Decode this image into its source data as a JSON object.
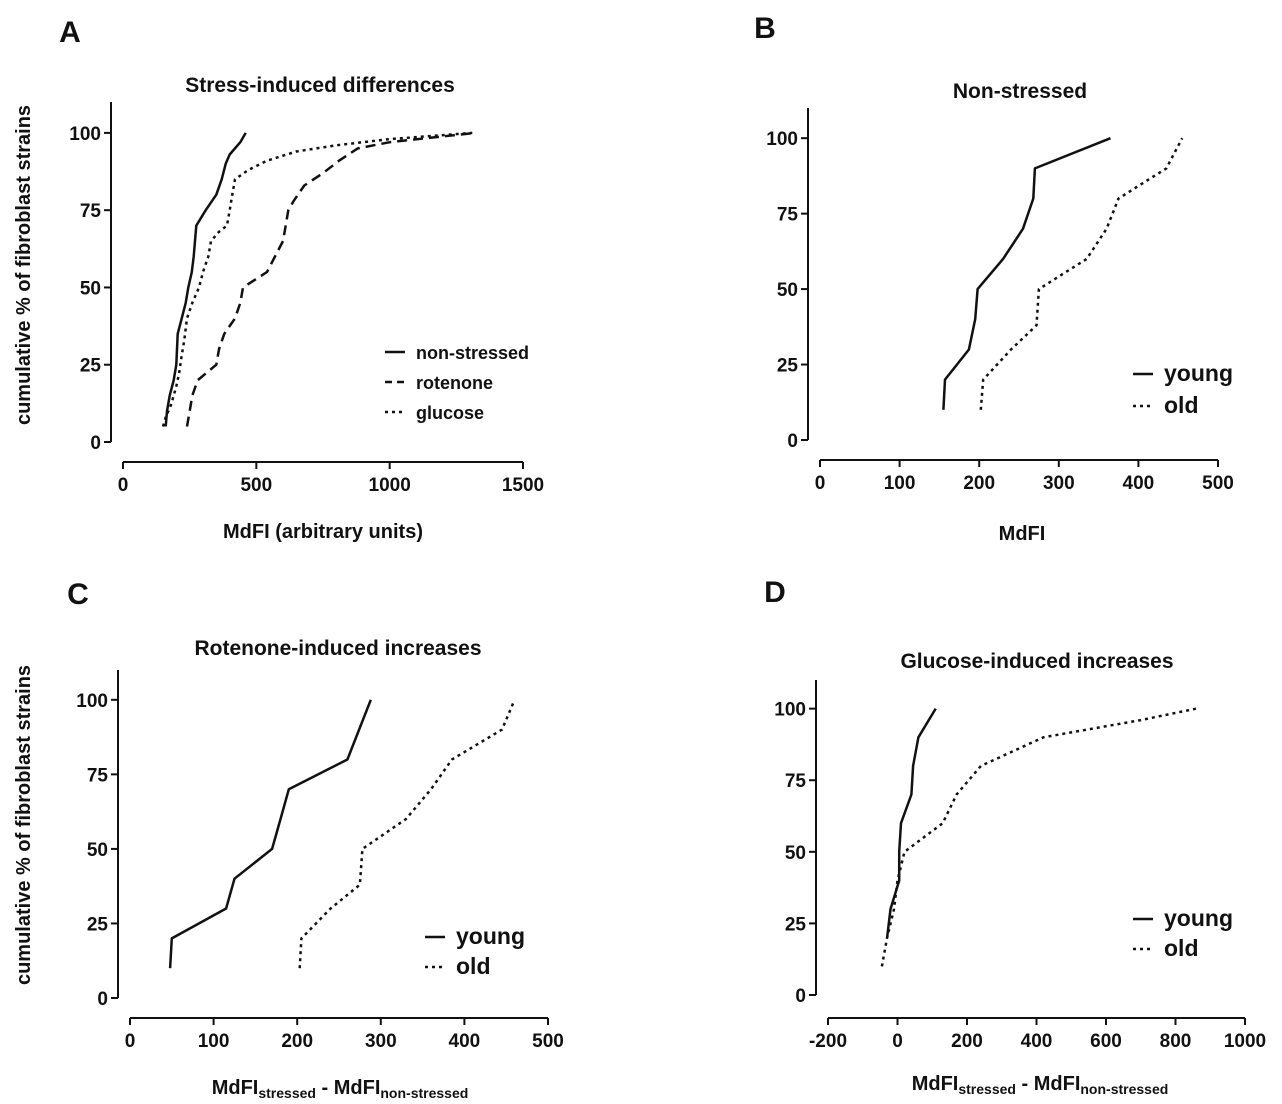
{
  "shared": {
    "ylabel": "cumulative % of fibroblast strains"
  },
  "chart_data": [
    {
      "panel": "A",
      "type": "line",
      "title": "Stress-induced differences",
      "xlabel": "MdFI (arbitrary units)",
      "ylabel": "cumulative % of fibroblast strains",
      "xlim": [
        0,
        1500
      ],
      "ylim": [
        0,
        110
      ],
      "xticks": [
        0,
        500,
        1000,
        1500
      ],
      "yticks": [
        0,
        25,
        50,
        75,
        100
      ],
      "legend_position": "bottom-right",
      "series": [
        {
          "name": "non-stressed",
          "style": "solid",
          "points": [
            [
              160,
              5
            ],
            [
              165,
              10
            ],
            [
              175,
              15
            ],
            [
              190,
              20
            ],
            [
              200,
              25
            ],
            [
              205,
              35
            ],
            [
              220,
              40
            ],
            [
              235,
              45
            ],
            [
              245,
              50
            ],
            [
              258,
              55
            ],
            [
              265,
              60
            ],
            [
              270,
              65
            ],
            [
              275,
              70
            ],
            [
              310,
              75
            ],
            [
              350,
              80
            ],
            [
              370,
              85
            ],
            [
              385,
              90
            ],
            [
              400,
              93
            ],
            [
              440,
              97
            ],
            [
              460,
              100
            ]
          ]
        },
        {
          "name": "rotenone",
          "style": "dashed",
          "points": [
            [
              240,
              5
            ],
            [
              250,
              10
            ],
            [
              260,
              15
            ],
            [
              280,
              20
            ],
            [
              350,
              25
            ],
            [
              360,
              30
            ],
            [
              380,
              35
            ],
            [
              420,
              40
            ],
            [
              440,
              45
            ],
            [
              450,
              50
            ],
            [
              540,
              55
            ],
            [
              570,
              60
            ],
            [
              600,
              65
            ],
            [
              610,
              70
            ],
            [
              620,
              75
            ],
            [
              640,
              78
            ],
            [
              680,
              83
            ],
            [
              750,
              87
            ],
            [
              810,
              91
            ],
            [
              880,
              95
            ],
            [
              1000,
              97
            ],
            [
              1320,
              100
            ]
          ]
        },
        {
          "name": "glucose",
          "style": "dotted",
          "points": [
            [
              150,
              5
            ],
            [
              160,
              8
            ],
            [
              180,
              12
            ],
            [
              200,
              18
            ],
            [
              210,
              22
            ],
            [
              220,
              28
            ],
            [
              230,
              33
            ],
            [
              240,
              40
            ],
            [
              260,
              45
            ],
            [
              285,
              50
            ],
            [
              300,
              55
            ],
            [
              320,
              60
            ],
            [
              330,
              65
            ],
            [
              360,
              68
            ],
            [
              390,
              70
            ],
            [
              400,
              75
            ],
            [
              410,
              80
            ],
            [
              420,
              85
            ],
            [
              470,
              88
            ],
            [
              540,
              91
            ],
            [
              650,
              94
            ],
            [
              800,
              96
            ],
            [
              1000,
              98
            ],
            [
              1310,
              100
            ]
          ]
        }
      ]
    },
    {
      "panel": "B",
      "type": "line",
      "title": "Non-stressed",
      "xlabel": "MdFI",
      "ylabel": "",
      "xlim": [
        0,
        500
      ],
      "ylim": [
        0,
        110
      ],
      "xticks": [
        0,
        100,
        200,
        300,
        400,
        500
      ],
      "yticks": [
        0,
        25,
        50,
        75,
        100
      ],
      "legend_position": "bottom-right",
      "series": [
        {
          "name": "young",
          "style": "solid",
          "points": [
            [
              155,
              10
            ],
            [
              157,
              20
            ],
            [
              187,
              30
            ],
            [
              195,
              40
            ],
            [
              198,
              50
            ],
            [
              230,
              60
            ],
            [
              255,
              70
            ],
            [
              268,
              80
            ],
            [
              270,
              90
            ],
            [
              365,
              100
            ]
          ]
        },
        {
          "name": "old",
          "style": "dotted",
          "points": [
            [
              202,
              10
            ],
            [
              205,
              20
            ],
            [
              240,
              30
            ],
            [
              272,
              38
            ],
            [
              275,
              50
            ],
            [
              335,
              60
            ],
            [
              360,
              70
            ],
            [
              375,
              80
            ],
            [
              435,
              90
            ],
            [
              455,
              100
            ]
          ]
        }
      ]
    },
    {
      "panel": "C",
      "type": "line",
      "title": "Rotenone-induced increases",
      "xlabel": "MdFIstressed - MdFInon-stressed",
      "ylabel": "cumulative % of fibroblast strains",
      "xlim": [
        0,
        500
      ],
      "ylim": [
        0,
        110
      ],
      "xticks": [
        0,
        100,
        200,
        300,
        400,
        500
      ],
      "yticks": [
        0,
        25,
        50,
        75,
        100
      ],
      "legend_position": "bottom-right",
      "series": [
        {
          "name": "young",
          "style": "solid",
          "points": [
            [
              48,
              10
            ],
            [
              50,
              20
            ],
            [
              115,
              30
            ],
            [
              125,
              40
            ],
            [
              170,
              50
            ],
            [
              180,
              60
            ],
            [
              190,
              70
            ],
            [
              260,
              80
            ],
            [
              288,
              100
            ]
          ]
        },
        {
          "name": "old",
          "style": "dotted",
          "points": [
            [
              203,
              10
            ],
            [
              205,
              20
            ],
            [
              240,
              30
            ],
            [
              275,
              38
            ],
            [
              278,
              50
            ],
            [
              330,
              60
            ],
            [
              360,
              70
            ],
            [
              385,
              80
            ],
            [
              445,
              90
            ],
            [
              460,
              100
            ]
          ]
        }
      ]
    },
    {
      "panel": "D",
      "type": "line",
      "title": "Glucose-induced increases",
      "xlabel": "MdFIstressed - MdFInon-stressed",
      "ylabel": "",
      "xlim": [
        -200,
        1000
      ],
      "ylim": [
        0,
        110
      ],
      "xticks": [
        -200,
        0,
        200,
        400,
        600,
        800,
        1000
      ],
      "yticks": [
        0,
        25,
        50,
        75,
        100
      ],
      "legend_position": "bottom-right",
      "series": [
        {
          "name": "young",
          "style": "solid",
          "points": [
            [
              -30,
              20
            ],
            [
              -20,
              30
            ],
            [
              5,
              40
            ],
            [
              5,
              50
            ],
            [
              10,
              60
            ],
            [
              40,
              70
            ],
            [
              45,
              80
            ],
            [
              60,
              90
            ],
            [
              110,
              100
            ]
          ]
        },
        {
          "name": "old",
          "style": "dotted",
          "points": [
            [
              -45,
              10
            ],
            [
              -30,
              20
            ],
            [
              -10,
              30
            ],
            [
              0,
              40
            ],
            [
              20,
              50
            ],
            [
              130,
              60
            ],
            [
              170,
              70
            ],
            [
              240,
              80
            ],
            [
              420,
              90
            ],
            [
              700,
              96
            ],
            [
              860,
              100
            ]
          ]
        }
      ]
    }
  ]
}
